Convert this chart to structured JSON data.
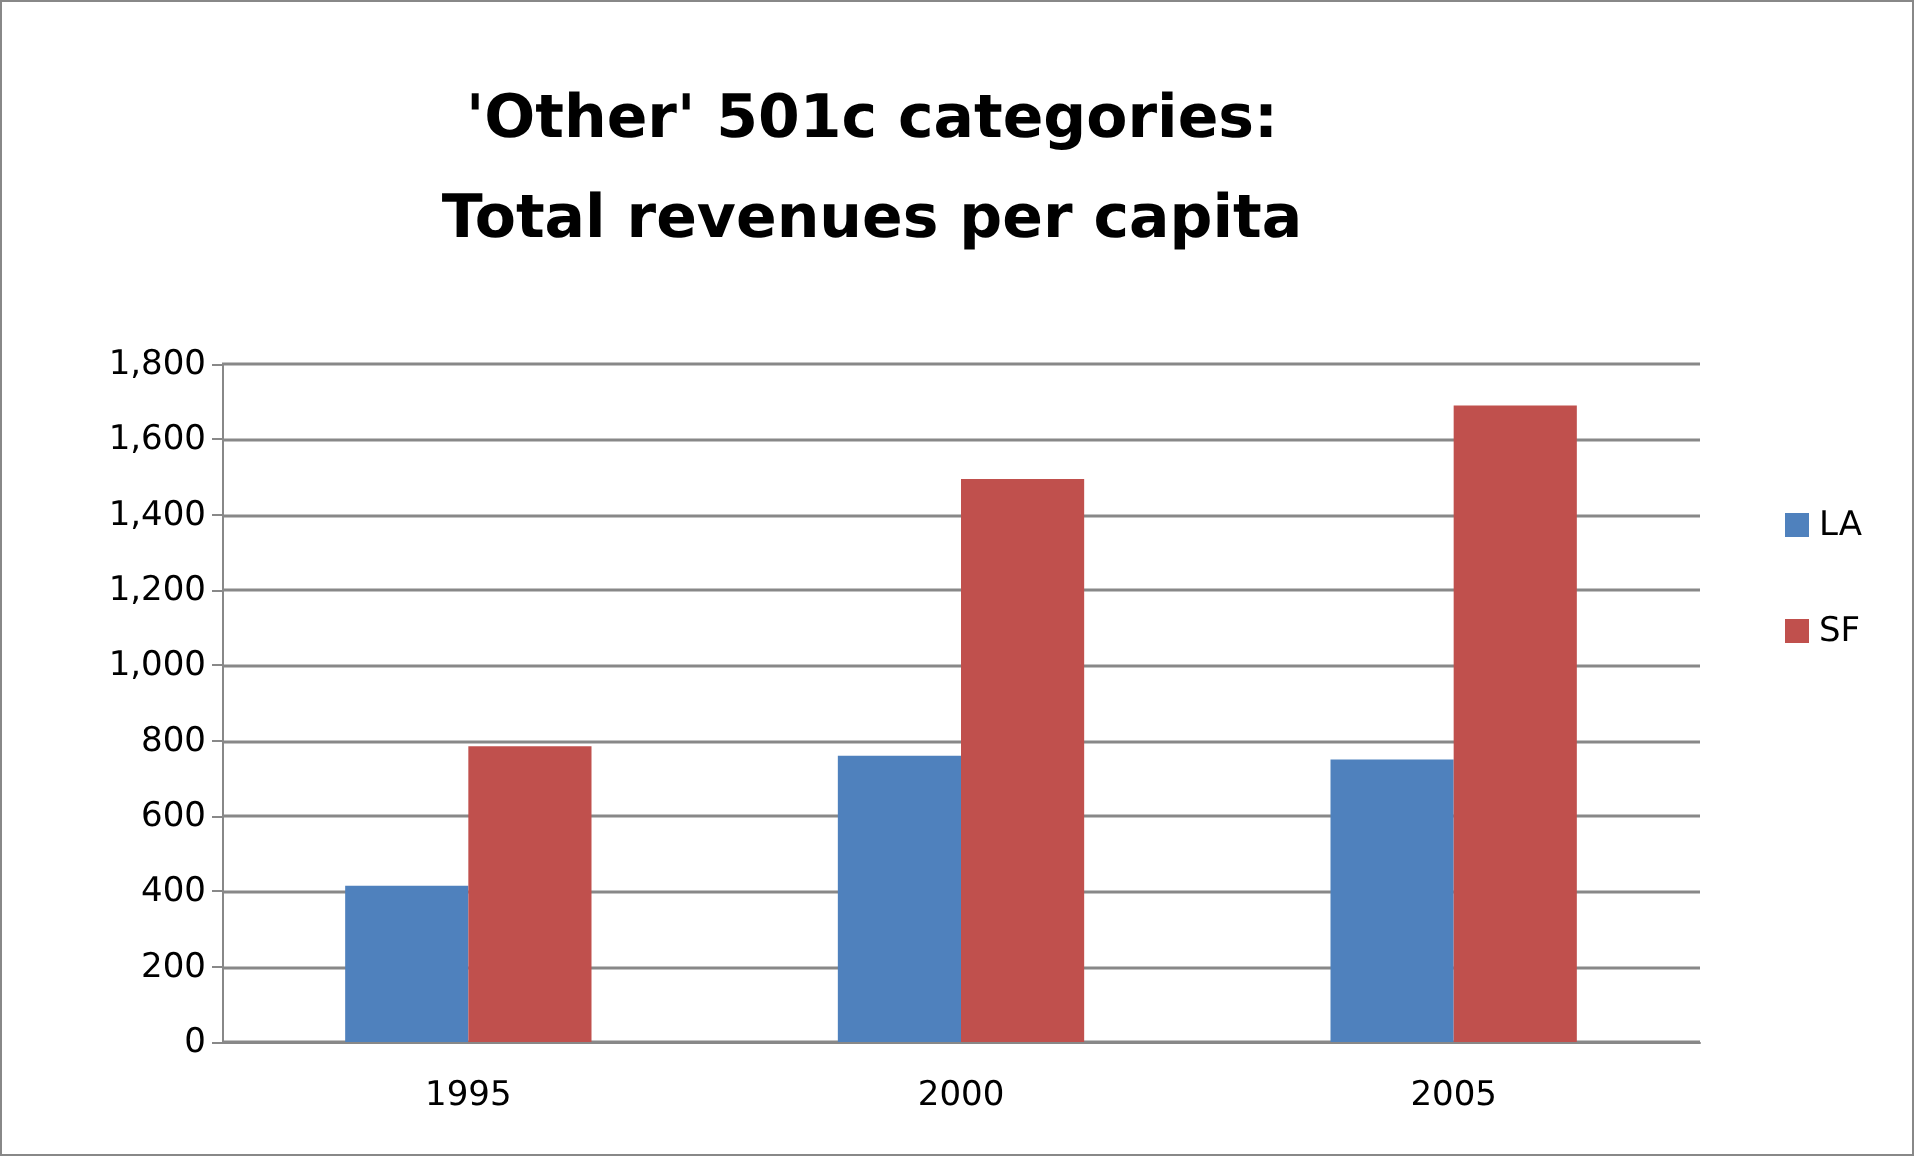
{
  "chart_data": {
    "type": "bar",
    "title": "'Other' 501c categories:\nTotal revenues per capita",
    "categories": [
      "1995",
      "2000",
      "2005"
    ],
    "series": [
      {
        "name": "LA",
        "color": "#4f81bd",
        "values": [
          415,
          760,
          750
        ]
      },
      {
        "name": "SF",
        "color": "#c0504d",
        "values": [
          785,
          1495,
          1690
        ]
      }
    ],
    "ylim": [
      0,
      1800
    ],
    "yticks": [
      0,
      200,
      400,
      600,
      800,
      {
        "value": 1000,
        "label": "1,000"
      },
      {
        "value": 1200,
        "label": "1,200"
      },
      {
        "value": 1400,
        "label": "1,400"
      },
      {
        "value": 1600,
        "label": "1,600"
      },
      {
        "value": 1800,
        "label": "1,800"
      }
    ],
    "grid": "y",
    "legend": "right"
  }
}
